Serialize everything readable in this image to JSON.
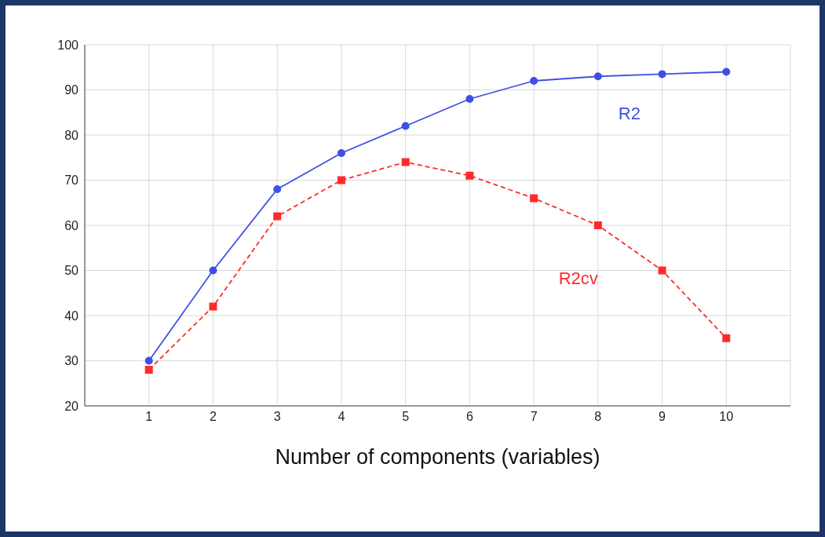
{
  "chart_data": {
    "type": "line",
    "xlabel": "Number of components (variables)",
    "x": [
      1,
      2,
      3,
      4,
      5,
      6,
      7,
      8,
      9,
      10
    ],
    "xlim": [
      0,
      11
    ],
    "xticks": [
      1,
      2,
      3,
      4,
      5,
      6,
      7,
      8,
      9,
      10
    ],
    "ylim": [
      20,
      100
    ],
    "yticks": [
      20,
      30,
      40,
      50,
      60,
      70,
      80,
      90,
      100
    ],
    "grid": true,
    "legend": false,
    "series": [
      {
        "name": "R2",
        "color": "#3f4fe6",
        "marker": "circle",
        "line_style": "solid",
        "values": [
          30,
          50,
          68,
          76,
          82,
          88,
          92,
          93,
          93.5,
          94
        ]
      },
      {
        "name": "R2cv",
        "color": "#ff2a2a",
        "marker": "square",
        "line_style": "dashed",
        "values": [
          28,
          42,
          62,
          70,
          74,
          71,
          66,
          60,
          50,
          35
        ]
      }
    ]
  }
}
